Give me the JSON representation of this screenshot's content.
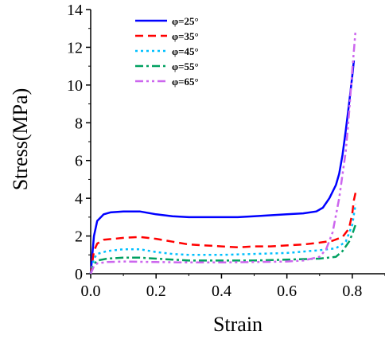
{
  "chart_data": {
    "type": "line",
    "title": "",
    "xlabel": "Strain",
    "ylabel": "Stress(MPa)",
    "xlim": [
      0.0,
      0.9
    ],
    "ylim": [
      0,
      14
    ],
    "xticks": [
      0.0,
      0.2,
      0.4,
      0.6,
      0.8
    ],
    "xtick_labels": [
      "0.0",
      "0.2",
      "0.4",
      "0.6",
      "0.8"
    ],
    "yticks": [
      0,
      2,
      4,
      6,
      8,
      10,
      12,
      14
    ],
    "ytick_labels": [
      "0",
      "2",
      "4",
      "6",
      "8",
      "10",
      "12",
      "14"
    ],
    "grid": false,
    "legend_position": "top-left",
    "series": [
      {
        "name": "φ=25°",
        "color": "#0000ff",
        "style": "solid",
        "x": [
          0.0,
          0.01,
          0.02,
          0.04,
          0.06,
          0.1,
          0.15,
          0.2,
          0.25,
          0.3,
          0.35,
          0.4,
          0.45,
          0.5,
          0.55,
          0.6,
          0.65,
          0.69,
          0.71,
          0.73,
          0.75,
          0.76,
          0.77,
          0.78,
          0.79,
          0.8,
          0.805
        ],
        "y": [
          0.0,
          2.0,
          2.8,
          3.15,
          3.25,
          3.3,
          3.3,
          3.15,
          3.05,
          3.0,
          3.0,
          3.0,
          3.0,
          3.05,
          3.1,
          3.15,
          3.2,
          3.3,
          3.5,
          4.0,
          4.7,
          5.3,
          6.3,
          7.6,
          9.0,
          10.5,
          11.3
        ]
      },
      {
        "name": "φ=35°",
        "color": "#ff0000",
        "style": "dashed",
        "x": [
          0.0,
          0.01,
          0.02,
          0.04,
          0.07,
          0.1,
          0.15,
          0.2,
          0.25,
          0.3,
          0.4,
          0.45,
          0.5,
          0.55,
          0.6,
          0.65,
          0.7,
          0.74,
          0.77,
          0.79,
          0.8,
          0.805,
          0.81
        ],
        "y": [
          0.0,
          1.2,
          1.6,
          1.8,
          1.85,
          1.9,
          1.95,
          1.85,
          1.7,
          1.55,
          1.45,
          1.4,
          1.45,
          1.45,
          1.5,
          1.55,
          1.65,
          1.75,
          1.95,
          2.4,
          3.2,
          3.9,
          4.3
        ]
      },
      {
        "name": "φ=45°",
        "color": "#00c0ff",
        "style": "dotted",
        "x": [
          0.0,
          0.01,
          0.02,
          0.05,
          0.1,
          0.15,
          0.2,
          0.25,
          0.3,
          0.4,
          0.5,
          0.6,
          0.7,
          0.75,
          0.78,
          0.8,
          0.81
        ],
        "y": [
          0.0,
          0.8,
          1.05,
          1.2,
          1.3,
          1.3,
          1.15,
          1.05,
          1.0,
          1.0,
          1.05,
          1.1,
          1.25,
          1.35,
          1.7,
          2.6,
          3.7
        ]
      },
      {
        "name": "φ=55°",
        "color": "#00a060",
        "style": "dashdot",
        "x": [
          0.0,
          0.01,
          0.02,
          0.05,
          0.1,
          0.15,
          0.2,
          0.25,
          0.3,
          0.35,
          0.4,
          0.5,
          0.6,
          0.7,
          0.75,
          0.77,
          0.79,
          0.8,
          0.81
        ],
        "y": [
          0.0,
          0.5,
          0.7,
          0.8,
          0.85,
          0.85,
          0.8,
          0.75,
          0.7,
          0.7,
          0.7,
          0.7,
          0.75,
          0.8,
          0.9,
          1.2,
          1.7,
          2.1,
          2.6
        ]
      },
      {
        "name": "φ=65°",
        "color": "#cc66ee",
        "style": "dashdotdot",
        "x": [
          0.0,
          0.01,
          0.02,
          0.05,
          0.1,
          0.2,
          0.3,
          0.4,
          0.5,
          0.6,
          0.65,
          0.7,
          0.72,
          0.74,
          0.76,
          0.78,
          0.79,
          0.8,
          0.81
        ],
        "y": [
          0.0,
          0.4,
          0.55,
          0.62,
          0.65,
          0.62,
          0.6,
          0.6,
          0.62,
          0.65,
          0.7,
          0.9,
          1.3,
          2.2,
          4.0,
          6.5,
          8.5,
          10.8,
          12.9
        ]
      }
    ]
  }
}
